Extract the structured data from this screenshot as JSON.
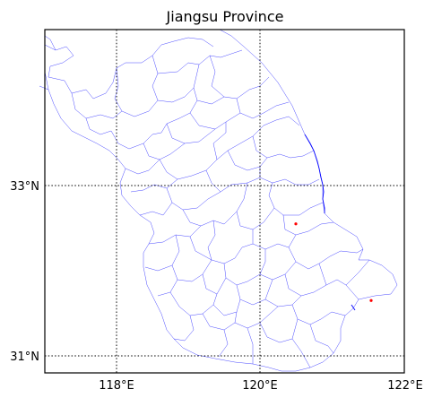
{
  "chart_data": {
    "type": "map",
    "title": "Jiangsu Province",
    "xticks": [
      "118°E",
      "120°E",
      "122°E"
    ],
    "yticks": [
      "33°N",
      "31°N"
    ],
    "lon_range": [
      117,
      122
    ],
    "lat_range": [
      30.8,
      34.8
    ],
    "gridlines": {
      "lon": [
        118,
        120
      ],
      "lat": [
        33,
        31
      ],
      "style": "dotted"
    },
    "markers": [
      {
        "lon": 120.5,
        "lat": 32.55,
        "color": "#ff0000"
      },
      {
        "lon": 121.55,
        "lat": 31.65,
        "color": "#ff0000"
      }
    ],
    "colors": {
      "boundary": "#0000ff",
      "marker": "#ff0000",
      "grid": "#000000"
    }
  }
}
